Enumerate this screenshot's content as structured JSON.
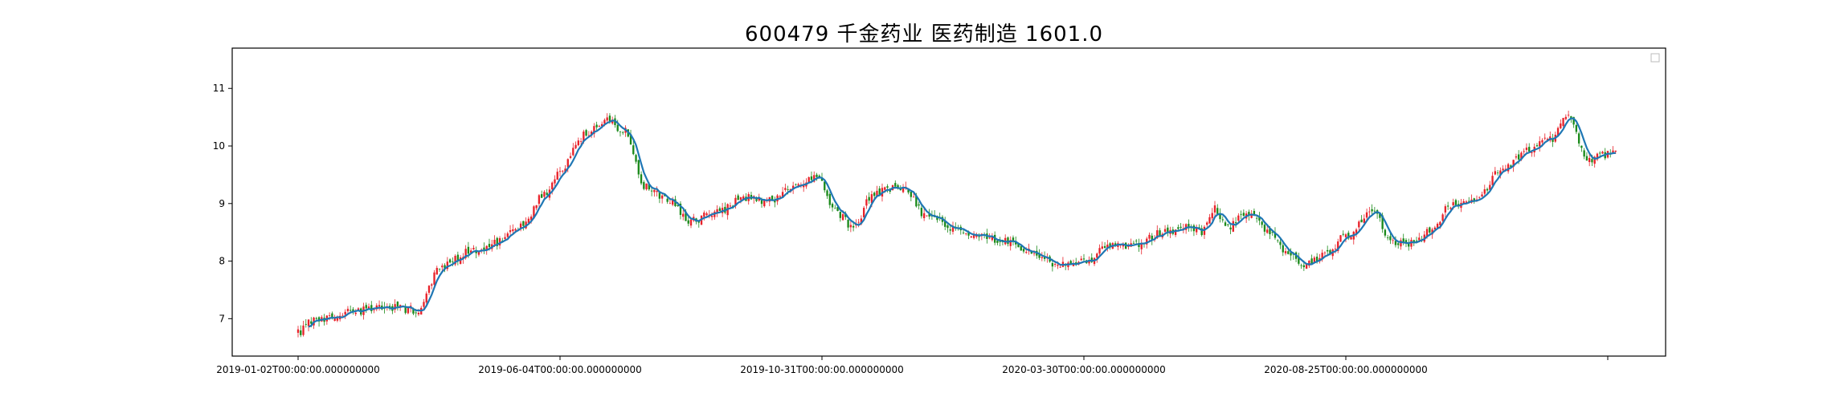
{
  "chart_data": {
    "type": "candlestick",
    "title": "600479 千金药业 医药制造 1601.0",
    "xlabel": "",
    "ylabel": "",
    "ylim": [
      6.35,
      11.7
    ],
    "yticks": [
      7,
      8,
      9,
      10,
      11
    ],
    "xtick_labels": [
      "2019-01-02T00:00:00.000000000",
      "2019-06-04T00:00:00.000000000",
      "2019-10-31T00:00:00.000000000",
      "2020-03-30T00:00:00.000000000",
      "2020-08-25T00:00:00.000000000",
      ""
    ],
    "xtick_index": [
      0,
      100,
      200,
      300,
      400,
      500
    ],
    "n_bars": 504,
    "legend": "top-right (empty)",
    "grid": false,
    "colors": {
      "up": "#e8222a",
      "down": "#1b8a1b",
      "ma": "#1f77b4"
    },
    "close_anchors": [
      [
        0,
        6.75
      ],
      [
        5,
        6.95
      ],
      [
        20,
        7.12
      ],
      [
        35,
        7.2
      ],
      [
        45,
        7.15
      ],
      [
        55,
        7.9
      ],
      [
        65,
        8.15
      ],
      [
        75,
        8.3
      ],
      [
        85,
        8.6
      ],
      [
        95,
        9.2
      ],
      [
        100,
        9.6
      ],
      [
        110,
        10.2
      ],
      [
        118,
        10.45
      ],
      [
        125,
        10.25
      ],
      [
        132,
        9.3
      ],
      [
        140,
        9.1
      ],
      [
        150,
        8.7
      ],
      [
        160,
        8.85
      ],
      [
        170,
        9.1
      ],
      [
        180,
        9.05
      ],
      [
        190,
        9.3
      ],
      [
        198,
        9.45
      ],
      [
        205,
        8.85
      ],
      [
        212,
        8.6
      ],
      [
        220,
        9.2
      ],
      [
        230,
        9.3
      ],
      [
        240,
        8.8
      ],
      [
        250,
        8.55
      ],
      [
        260,
        8.45
      ],
      [
        270,
        8.35
      ],
      [
        280,
        8.15
      ],
      [
        290,
        7.95
      ],
      [
        300,
        8.0
      ],
      [
        310,
        8.25
      ],
      [
        320,
        8.3
      ],
      [
        330,
        8.5
      ],
      [
        340,
        8.6
      ],
      [
        345,
        8.5
      ],
      [
        350,
        8.9
      ],
      [
        355,
        8.6
      ],
      [
        362,
        8.85
      ],
      [
        370,
        8.55
      ],
      [
        378,
        8.1
      ],
      [
        385,
        7.95
      ],
      [
        392,
        8.1
      ],
      [
        400,
        8.45
      ],
      [
        410,
        8.85
      ],
      [
        418,
        8.35
      ],
      [
        425,
        8.3
      ],
      [
        432,
        8.5
      ],
      [
        440,
        8.95
      ],
      [
        450,
        9.1
      ],
      [
        460,
        9.6
      ],
      [
        470,
        9.95
      ],
      [
        478,
        10.1
      ],
      [
        485,
        10.55
      ],
      [
        492,
        9.75
      ],
      [
        500,
        9.85
      ]
    ]
  }
}
